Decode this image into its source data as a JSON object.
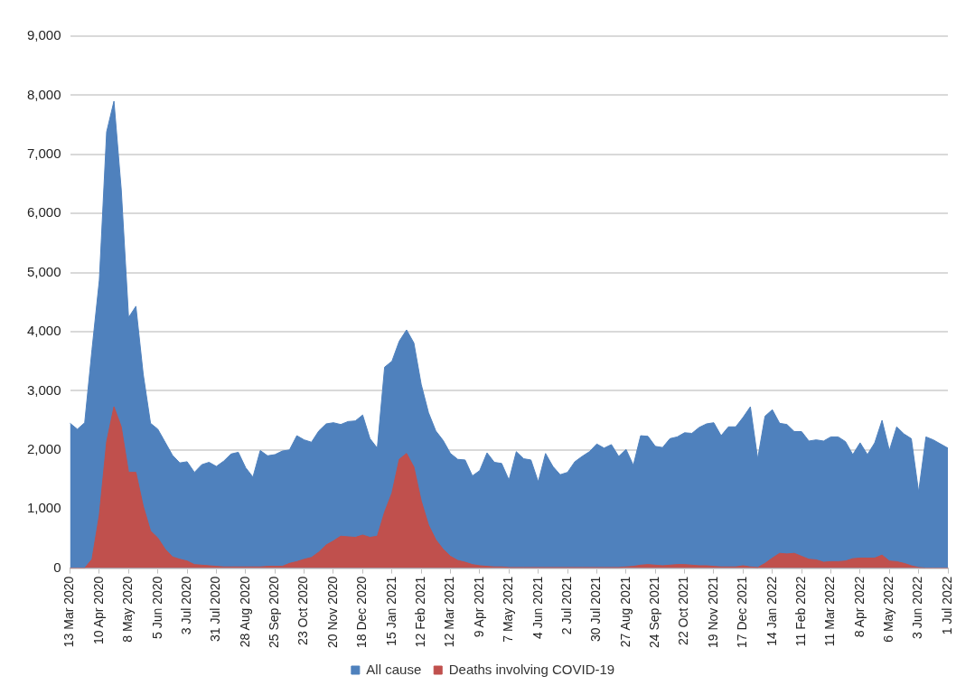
{
  "chart_data": {
    "type": "area",
    "categories": [
      "13 Mar 2020",
      null,
      null,
      null,
      "10 Apr 2020",
      null,
      null,
      null,
      "8 May 2020",
      null,
      null,
      null,
      "5 Jun 2020",
      null,
      null,
      null,
      "3 Jul 2020",
      null,
      null,
      null,
      "31 Jul 2020",
      null,
      null,
      null,
      "28 Aug 2020",
      null,
      null,
      null,
      "25 Sep 2020",
      null,
      null,
      null,
      "23 Oct 2020",
      null,
      null,
      null,
      "20 Nov 2020",
      null,
      null,
      null,
      "18 Dec 2020",
      null,
      null,
      null,
      "15 Jan 2021",
      null,
      null,
      null,
      "12 Feb 2021",
      null,
      null,
      null,
      "12 Mar 2021",
      null,
      null,
      null,
      "9 Apr 2021",
      null,
      null,
      null,
      "7 May 2021",
      null,
      null,
      null,
      "4 Jun 2021",
      null,
      null,
      null,
      "2 Jul 2021",
      null,
      null,
      null,
      "30 Jul 2021",
      null,
      null,
      null,
      "27 Aug 2021",
      null,
      null,
      null,
      "24 Sep 2021",
      null,
      null,
      null,
      "22 Oct 2021",
      null,
      null,
      null,
      "19 Nov 2021",
      null,
      null,
      null,
      "17 Dec 2021",
      null,
      null,
      null,
      "14 Jan 2022",
      null,
      null,
      null,
      "11 Feb 2022",
      null,
      null,
      null,
      "11 Mar 2022",
      null,
      null,
      null,
      "8 Apr 2022",
      null,
      null,
      null,
      "6 May 2022",
      null,
      null,
      null,
      "3 Jun 2022",
      null,
      null,
      null,
      "1 Jul 2022"
    ],
    "series": [
      {
        "name": "All cause",
        "color": "#4f81bd",
        "values": [
          2450,
          2350,
          2460,
          3700,
          4870,
          7380,
          7900,
          6400,
          4240,
          4430,
          3280,
          2450,
          2350,
          2130,
          1910,
          1780,
          1800,
          1620,
          1750,
          1790,
          1720,
          1810,
          1930,
          1960,
          1700,
          1540,
          1990,
          1900,
          1920,
          1980,
          2000,
          2240,
          2170,
          2130,
          2320,
          2440,
          2460,
          2430,
          2480,
          2490,
          2590,
          2190,
          2030,
          3400,
          3500,
          3840,
          4030,
          3810,
          3110,
          2630,
          2320,
          2160,
          1940,
          1840,
          1830,
          1560,
          1650,
          1950,
          1790,
          1770,
          1490,
          1970,
          1850,
          1830,
          1460,
          1940,
          1720,
          1580,
          1620,
          1800,
          1890,
          1970,
          2100,
          2030,
          2090,
          1890,
          2010,
          1740,
          2240,
          2230,
          2060,
          2040,
          2190,
          2220,
          2290,
          2280,
          2380,
          2440,
          2460,
          2240,
          2390,
          2390,
          2550,
          2730,
          1850,
          2570,
          2680,
          2450,
          2430,
          2310,
          2310,
          2150,
          2170,
          2150,
          2220,
          2220,
          2140,
          1920,
          2120,
          1920,
          2120,
          2500,
          1990,
          2390,
          2270,
          2190,
          1290,
          2220,
          2170,
          2100,
          2030
        ]
      },
      {
        "name": "Deaths involving COVID-19",
        "color": "#c0504d",
        "values": [
          0,
          0,
          0,
          150,
          900,
          2140,
          2730,
          2390,
          1620,
          1620,
          1050,
          630,
          510,
          320,
          190,
          150,
          120,
          60,
          50,
          40,
          30,
          20,
          20,
          20,
          20,
          20,
          20,
          30,
          30,
          30,
          80,
          110,
          150,
          180,
          270,
          390,
          460,
          540,
          530,
          520,
          560,
          520,
          540,
          950,
          1270,
          1840,
          1940,
          1710,
          1140,
          730,
          480,
          320,
          200,
          130,
          100,
          60,
          40,
          30,
          20,
          20,
          10,
          10,
          10,
          10,
          10,
          10,
          10,
          10,
          10,
          10,
          10,
          10,
          10,
          10,
          10,
          10,
          20,
          30,
          50,
          60,
          50,
          40,
          50,
          60,
          60,
          50,
          40,
          40,
          30,
          20,
          20,
          20,
          40,
          20,
          10,
          80,
          170,
          250,
          240,
          250,
          200,
          150,
          140,
          100,
          110,
          110,
          120,
          160,
          170,
          170,
          170,
          220,
          120,
          110,
          80,
          40,
          10,
          0,
          0,
          0,
          0
        ]
      }
    ],
    "ylim": [
      0,
      9000
    ],
    "yticks": [
      0,
      {
        "value": 1000,
        "label": "1,000"
      },
      {
        "value": 2000,
        "label": "2,000"
      },
      {
        "value": 3000,
        "label": "3,000"
      },
      {
        "value": 4000,
        "label": "4,000"
      },
      {
        "value": 5000,
        "label": "5,000"
      },
      {
        "value": 6000,
        "label": "6,000"
      },
      {
        "value": 7000,
        "label": "7,000"
      },
      {
        "value": 8000,
        "label": "8,000"
      },
      {
        "value": 9000,
        "label": "9,000"
      }
    ],
    "grid": "y",
    "legend": "bottom"
  }
}
